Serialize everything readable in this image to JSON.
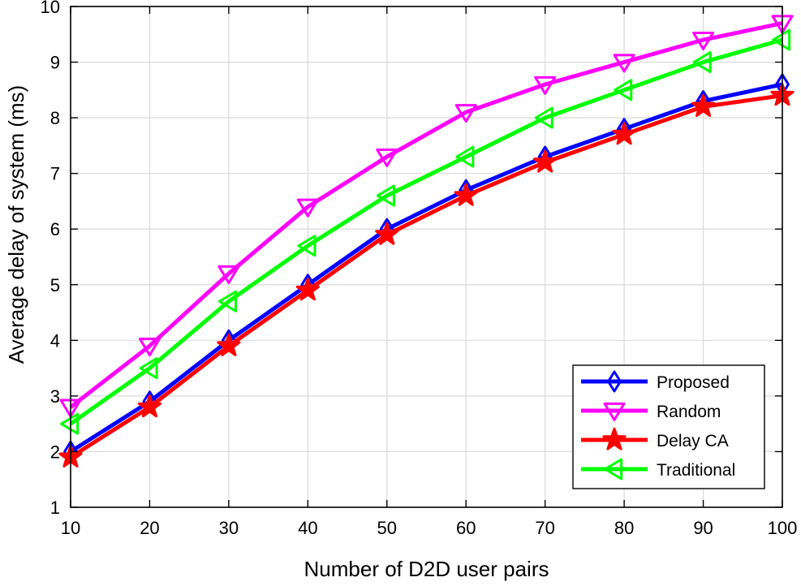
{
  "chart_data": {
    "type": "line",
    "title": "",
    "xlabel": "Number of D2D user pairs",
    "ylabel": "Average delay of system (ms)",
    "xlim": [
      10,
      100
    ],
    "ylim": [
      1,
      10
    ],
    "x": [
      10,
      20,
      30,
      40,
      50,
      60,
      70,
      80,
      90,
      100
    ],
    "xticks": [
      "10",
      "20",
      "30",
      "40",
      "50",
      "60",
      "70",
      "80",
      "90",
      "100"
    ],
    "yticks": [
      "1",
      "2",
      "3",
      "4",
      "5",
      "6",
      "7",
      "8",
      "9",
      "10"
    ],
    "grid": true,
    "legend_position": "bottom-right",
    "series": [
      {
        "name": "Proposed",
        "color": "#0000ff",
        "marker": "diamond",
        "values": [
          2.0,
          2.9,
          4.0,
          5.0,
          6.0,
          6.7,
          7.3,
          7.8,
          8.3,
          8.6
        ]
      },
      {
        "name": "Random",
        "color": "#ff00ff",
        "marker": "triangle-down",
        "values": [
          2.8,
          3.9,
          5.2,
          6.4,
          7.3,
          8.1,
          8.6,
          9.0,
          9.4,
          9.7
        ]
      },
      {
        "name": "Delay CA",
        "color": "#ff0000",
        "marker": "star",
        "values": [
          1.9,
          2.8,
          3.9,
          4.9,
          5.9,
          6.6,
          7.2,
          7.7,
          8.2,
          8.4
        ]
      },
      {
        "name": "Traditional",
        "color": "#00ff00",
        "marker": "triangle-left",
        "values": [
          2.5,
          3.5,
          4.7,
          5.7,
          6.6,
          7.3,
          8.0,
          8.5,
          9.0,
          9.4
        ]
      }
    ]
  }
}
